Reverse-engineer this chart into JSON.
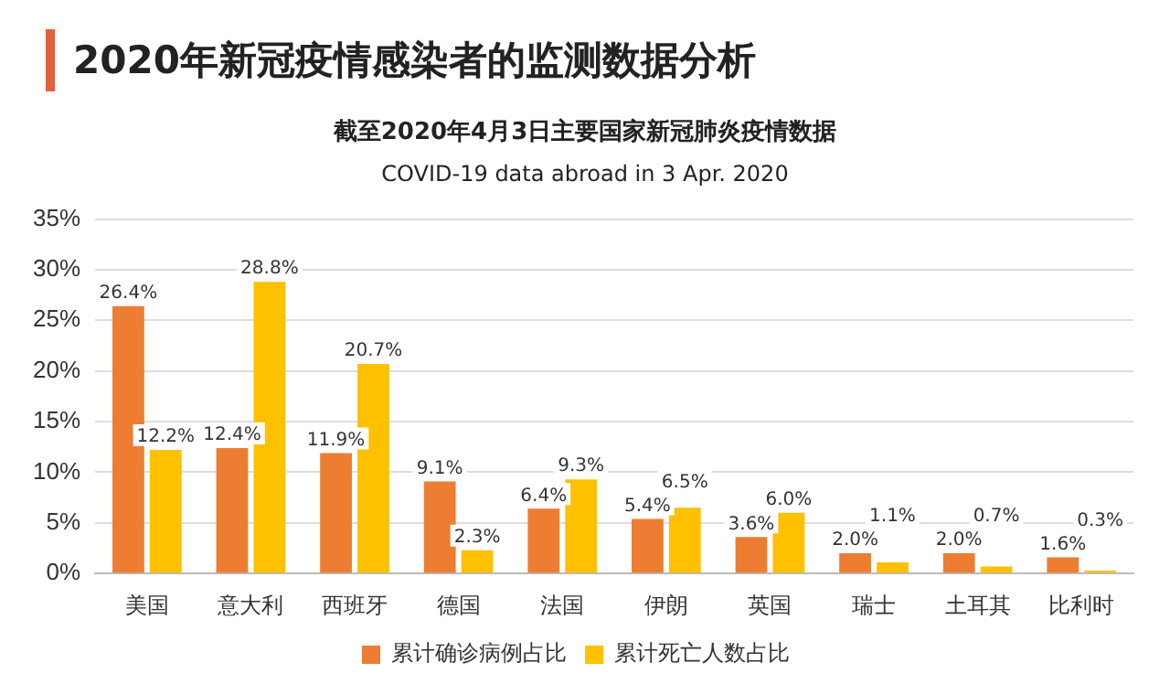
{
  "chart_data": {
    "type": "bar",
    "title": "2020年新冠疫情感染者的监测数据分析",
    "subtitle": "截至2020年4月3日主要国家新冠肺炎疫情数据",
    "annotations": [
      "COVID-19 data abroad in 3 Apr. 2020"
    ],
    "categories": [
      "美国",
      "意大利",
      "西班牙",
      "德国",
      "法国",
      "伊朗",
      "英国",
      "瑞士",
      "土耳其",
      "比利时"
    ],
    "series": [
      {
        "name": "累计确诊病例占比",
        "color": "#ed7d31",
        "values": [
          26.4,
          12.4,
          11.9,
          9.1,
          6.4,
          5.4,
          3.6,
          2.0,
          2.0,
          1.6
        ],
        "value_labels": [
          "26.4%",
          "12.4%",
          "11.9%",
          "9.1%",
          "6.4%",
          "5.4%",
          "3.6%",
          "2.0%",
          "2.0%",
          "1.6%"
        ]
      },
      {
        "name": "累计死亡人数占比",
        "color": "#ffc000",
        "values": [
          12.2,
          28.8,
          20.7,
          2.3,
          9.3,
          6.5,
          6.0,
          1.1,
          0.7,
          0.3
        ],
        "value_labels": [
          "12.2%",
          "28.8%",
          "20.7%",
          "2.3%",
          "9.3%",
          "6.5%",
          "6.0%",
          "1.1%",
          "0.7%",
          "0.3%"
        ]
      }
    ],
    "ylim": [
      0,
      35
    ],
    "yticks": [
      {
        "value": 0,
        "label": "0%"
      },
      {
        "value": 5,
        "label": "5%"
      },
      {
        "value": 10,
        "label": "10%"
      },
      {
        "value": 15,
        "label": "15%"
      },
      {
        "value": 20,
        "label": "20%"
      },
      {
        "value": 25,
        "label": "25%"
      },
      {
        "value": 30,
        "label": "30%"
      },
      {
        "value": 35,
        "label": "35%"
      }
    ],
    "grid": "y",
    "legend": "bottom"
  }
}
